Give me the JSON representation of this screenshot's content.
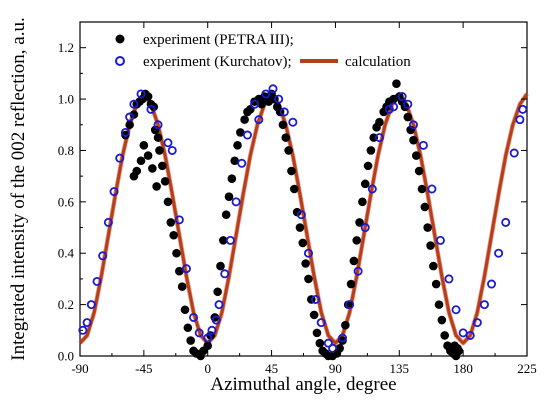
{
  "chart_data": {
    "type": "scatter",
    "title": "",
    "xlabel": "Azimuthal angle, degree",
    "ylabel": "Integrated intensity of the 002 reflection, a.u.",
    "xlim": [
      -90,
      225
    ],
    "ylim": [
      0.0,
      1.3
    ],
    "xticks": [
      -90,
      -45,
      0,
      45,
      90,
      135,
      180,
      225
    ],
    "yticks": [
      0.0,
      0.2,
      0.4,
      0.6,
      0.8,
      1.0,
      1.2
    ],
    "xtick_labels": [
      "-90",
      "-45",
      "0",
      "45",
      "90",
      "135",
      "180",
      "225"
    ],
    "ytick_labels": [
      "0.0",
      "0.2",
      "0.4",
      "0.6",
      "0.8",
      "1.0",
      "1.2"
    ],
    "grid": false,
    "legend_position": "top-left",
    "legend": [
      {
        "label": "experiment (PETRA III);",
        "marker": "filled-circle",
        "color": "#000000"
      },
      {
        "label": "experiment (Kurchatov);",
        "marker": "open-circle",
        "color": "#1a1ad0"
      },
      {
        "label": "calculation",
        "marker": "line",
        "color": "#b3401a"
      }
    ],
    "series": [
      {
        "name": "experiment (PETRA III);",
        "kind": "scatter-filled",
        "color": "#000000",
        "points": [
          [
            -58,
            0.86
          ],
          [
            -55,
            0.9
          ],
          [
            -52,
            0.94
          ],
          [
            -50,
            0.98
          ],
          [
            -48,
            0.99
          ],
          [
            -46,
            1.0
          ],
          [
            -44,
            1.02
          ],
          [
            -42,
            1.01
          ],
          [
            -40,
            0.98
          ],
          [
            -38,
            0.97
          ],
          [
            -37,
            0.88
          ],
          [
            -35,
            0.85
          ],
          [
            -34,
            0.8
          ],
          [
            -32,
            0.74
          ],
          [
            -30,
            0.68
          ],
          [
            -28,
            0.6
          ],
          [
            -26,
            0.52
          ],
          [
            -24,
            0.47
          ],
          [
            -22,
            0.4
          ],
          [
            -20,
            0.33
          ],
          [
            -18,
            0.27
          ],
          [
            -16,
            0.18
          ],
          [
            -14,
            0.11
          ],
          [
            -12,
            0.06
          ],
          [
            -10,
            0.02
          ],
          [
            -8,
            0.01
          ],
          [
            -5,
            0.0
          ],
          [
            -3,
            0.02
          ],
          [
            0,
            0.04
          ],
          [
            2,
            0.08
          ],
          [
            -45,
            0.82
          ],
          [
            -42,
            0.78
          ],
          [
            -47,
            0.76
          ],
          [
            -50,
            0.72
          ],
          [
            -52,
            0.7
          ],
          [
            -39,
            0.73
          ],
          [
            -36,
            0.66
          ],
          [
            5,
            0.15
          ],
          [
            7,
            0.25
          ],
          [
            9,
            0.35
          ],
          [
            11,
            0.45
          ],
          [
            13,
            0.55
          ],
          [
            15,
            0.62
          ],
          [
            17,
            0.69
          ],
          [
            19,
            0.76
          ],
          [
            21,
            0.82
          ],
          [
            23,
            0.87
          ],
          [
            26,
            0.92
          ],
          [
            28,
            0.95
          ],
          [
            30,
            0.96
          ],
          [
            33,
            0.99
          ],
          [
            36,
            1.0
          ],
          [
            38,
            0.98
          ],
          [
            40,
            1.01
          ],
          [
            43,
            0.99
          ],
          [
            45,
            1.02
          ],
          [
            47,
            1.0
          ],
          [
            49,
            0.97
          ],
          [
            51,
            0.95
          ],
          [
            53,
            0.9
          ],
          [
            55,
            0.85
          ],
          [
            57,
            0.8
          ],
          [
            59,
            0.72
          ],
          [
            61,
            0.65
          ],
          [
            63,
            0.56
          ],
          [
            65,
            0.5
          ],
          [
            67,
            0.44
          ],
          [
            69,
            0.36
          ],
          [
            71,
            0.3
          ],
          [
            73,
            0.22
          ],
          [
            75,
            0.16
          ],
          [
            77,
            0.09
          ],
          [
            79,
            0.05
          ],
          [
            81,
            0.02
          ],
          [
            83,
            0.01
          ],
          [
            85,
            0.0
          ],
          [
            88,
            0.0
          ],
          [
            91,
            0.01
          ],
          [
            93,
            0.03
          ],
          [
            95,
            0.06
          ],
          [
            97,
            0.12
          ],
          [
            99,
            0.2
          ],
          [
            101,
            0.28
          ],
          [
            103,
            0.37
          ],
          [
            105,
            0.45
          ],
          [
            107,
            0.52
          ],
          [
            109,
            0.6
          ],
          [
            111,
            0.67
          ],
          [
            113,
            0.74
          ],
          [
            115,
            0.8
          ],
          [
            117,
            0.85
          ],
          [
            119,
            0.89
          ],
          [
            121,
            0.91
          ],
          [
            124,
            0.95
          ],
          [
            126,
            0.97
          ],
          [
            128,
            0.99
          ],
          [
            131,
            1.0
          ],
          [
            133,
            1.06
          ],
          [
            135,
            1.01
          ],
          [
            137,
            0.99
          ],
          [
            139,
            0.97
          ],
          [
            141,
            0.93
          ],
          [
            143,
            0.88
          ],
          [
            145,
            0.84
          ],
          [
            147,
            0.78
          ],
          [
            149,
            0.72
          ],
          [
            151,
            0.65
          ],
          [
            153,
            0.58
          ],
          [
            155,
            0.5
          ],
          [
            157,
            0.43
          ],
          [
            159,
            0.35
          ],
          [
            161,
            0.28
          ],
          [
            163,
            0.2
          ],
          [
            165,
            0.14
          ],
          [
            167,
            0.08
          ],
          [
            169,
            0.04
          ],
          [
            171,
            0.02
          ],
          [
            173,
            0.01
          ],
          [
            175,
            0.0
          ],
          [
            177,
            0.02
          ],
          [
            174,
            0.04
          ],
          [
            176,
            0.03
          ]
        ]
      },
      {
        "name": "experiment (Kurchatov);",
        "kind": "scatter-open",
        "color": "#1a1ad0",
        "points": [
          [
            -88,
            0.1
          ],
          [
            -85,
            0.13
          ],
          [
            -82,
            0.2
          ],
          [
            -78,
            0.29
          ],
          [
            -74,
            0.39
          ],
          [
            -70,
            0.52
          ],
          [
            -66,
            0.64
          ],
          [
            -62,
            0.77
          ],
          [
            -58,
            0.87
          ],
          [
            -55,
            0.93
          ],
          [
            -52,
            0.98
          ],
          [
            -47,
            1.02
          ],
          [
            -40,
            0.96
          ],
          [
            -35,
            0.9
          ],
          [
            -28,
            0.83
          ],
          [
            -25,
            0.8
          ],
          [
            -20,
            0.53
          ],
          [
            -15,
            0.34
          ],
          [
            -10,
            0.15
          ],
          [
            -6,
            0.09
          ],
          [
            0,
            0.07
          ],
          [
            3,
            0.1
          ],
          [
            6,
            0.14
          ],
          [
            8,
            0.2
          ],
          [
            12,
            0.32
          ],
          [
            16,
            0.45
          ],
          [
            20,
            0.6
          ],
          [
            24,
            0.75
          ],
          [
            28,
            0.86
          ],
          [
            33,
            0.98
          ],
          [
            36,
            0.92
          ],
          [
            41,
            1.02
          ],
          [
            46,
            1.04
          ],
          [
            50,
            1.0
          ],
          [
            54,
            0.95
          ],
          [
            60,
            0.91
          ],
          [
            66,
            0.55
          ],
          [
            71,
            0.4
          ],
          [
            76,
            0.22
          ],
          [
            80,
            0.13
          ],
          [
            85,
            0.05
          ],
          [
            88,
            0.03
          ],
          [
            95,
            0.07
          ],
          [
            100,
            0.2
          ],
          [
            106,
            0.33
          ],
          [
            111,
            0.5
          ],
          [
            116,
            0.65
          ],
          [
            121,
            0.85
          ],
          [
            128,
            0.96
          ],
          [
            131,
            0.97
          ],
          [
            137,
            1.01
          ],
          [
            141,
            0.98
          ],
          [
            145,
            0.9
          ],
          [
            152,
            0.82
          ],
          [
            158,
            0.65
          ],
          [
            164,
            0.45
          ],
          [
            170,
            0.3
          ],
          [
            175,
            0.18
          ],
          [
            180,
            0.09
          ],
          [
            185,
            0.08
          ],
          [
            190,
            0.13
          ],
          [
            195,
            0.2
          ],
          [
            200,
            0.28
          ],
          [
            205,
            0.4
          ],
          [
            210,
            0.52
          ],
          [
            216,
            0.79
          ],
          [
            220,
            0.92
          ],
          [
            222,
            0.96
          ]
        ]
      },
      {
        "name": "calculation",
        "kind": "line",
        "color": "#b3401a",
        "x": [
          -90,
          -85,
          -80,
          -75,
          -70,
          -65,
          -60,
          -55,
          -50,
          -45,
          -40,
          -35,
          -30,
          -25,
          -20,
          -15,
          -10,
          -5,
          0,
          5,
          10,
          15,
          20,
          25,
          30,
          35,
          40,
          45,
          50,
          55,
          60,
          65,
          70,
          75,
          80,
          85,
          90,
          95,
          100,
          105,
          110,
          115,
          120,
          125,
          130,
          135,
          140,
          145,
          150,
          155,
          160,
          165,
          170,
          175,
          180,
          185,
          190,
          195,
          200,
          205,
          210,
          215,
          220,
          225
        ],
        "values": [
          0.05,
          0.08,
          0.17,
          0.31,
          0.47,
          0.63,
          0.78,
          0.9,
          0.98,
          1.02,
          0.98,
          0.9,
          0.78,
          0.63,
          0.47,
          0.31,
          0.17,
          0.08,
          0.05,
          0.08,
          0.17,
          0.31,
          0.47,
          0.63,
          0.78,
          0.9,
          0.98,
          1.02,
          0.98,
          0.9,
          0.78,
          0.63,
          0.47,
          0.31,
          0.17,
          0.08,
          0.05,
          0.08,
          0.17,
          0.31,
          0.47,
          0.63,
          0.78,
          0.9,
          0.98,
          1.02,
          0.98,
          0.9,
          0.78,
          0.63,
          0.47,
          0.31,
          0.17,
          0.08,
          0.05,
          0.08,
          0.17,
          0.31,
          0.47,
          0.63,
          0.78,
          0.9,
          0.98,
          1.02
        ]
      }
    ]
  }
}
